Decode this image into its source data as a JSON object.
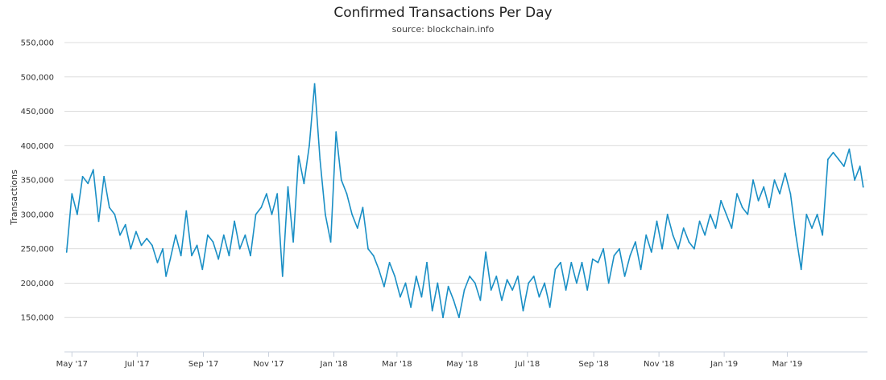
{
  "chart_data": {
    "type": "line",
    "title": "Confirmed Transactions Per Day",
    "subtitle": "source: blockchain.info",
    "ylabel": "Transactions",
    "xlabel": "",
    "ylim": [
      100000,
      550000
    ],
    "xlim": [
      "2017-04-24",
      "2019-05-15"
    ],
    "grid": true,
    "legend": "none",
    "color": "#1a8fc5",
    "y_ticks": [
      {
        "value": 150000,
        "label": "150,000"
      },
      {
        "value": 200000,
        "label": "200,000"
      },
      {
        "value": 250000,
        "label": "250,000"
      },
      {
        "value": 300000,
        "label": "300,000"
      },
      {
        "value": 350000,
        "label": "350,000"
      },
      {
        "value": 400000,
        "label": "400,000"
      },
      {
        "value": 450000,
        "label": "450,000"
      },
      {
        "value": 500000,
        "label": "500,000"
      },
      {
        "value": 550000,
        "label": "550,000"
      }
    ],
    "x_ticks": [
      {
        "date": "2017-05-01",
        "label": "May '17"
      },
      {
        "date": "2017-07-01",
        "label": "Jul '17"
      },
      {
        "date": "2017-09-01",
        "label": "Sep '17"
      },
      {
        "date": "2017-11-01",
        "label": "Nov '17"
      },
      {
        "date": "2018-01-01",
        "label": "Jan '18"
      },
      {
        "date": "2018-03-01",
        "label": "Mar '18"
      },
      {
        "date": "2018-05-01",
        "label": "May '18"
      },
      {
        "date": "2018-07-01",
        "label": "Jul '18"
      },
      {
        "date": "2018-09-01",
        "label": "Sep '18"
      },
      {
        "date": "2018-11-01",
        "label": "Nov '18"
      },
      {
        "date": "2019-01-01",
        "label": "Jan '19"
      },
      {
        "date": "2019-03-01",
        "label": "Mar '19"
      }
    ],
    "series": [
      {
        "x": [
          "2017-04-26",
          "2017-05-01",
          "2017-05-06",
          "2017-05-11",
          "2017-05-16",
          "2017-05-21",
          "2017-05-26",
          "2017-05-31",
          "2017-06-05",
          "2017-06-10",
          "2017-06-15",
          "2017-06-20",
          "2017-06-25",
          "2017-06-30",
          "2017-07-05",
          "2017-07-10",
          "2017-07-15",
          "2017-07-20",
          "2017-07-25",
          "2017-07-28",
          "2017-08-01",
          "2017-08-06",
          "2017-08-11",
          "2017-08-16",
          "2017-08-21",
          "2017-08-26",
          "2017-08-31",
          "2017-09-05",
          "2017-09-10",
          "2017-09-15",
          "2017-09-20",
          "2017-09-25",
          "2017-09-30",
          "2017-10-05",
          "2017-10-10",
          "2017-10-15",
          "2017-10-20",
          "2017-10-25",
          "2017-10-30",
          "2017-11-04",
          "2017-11-09",
          "2017-11-14",
          "2017-11-19",
          "2017-11-24",
          "2017-11-29",
          "2017-12-04",
          "2017-12-09",
          "2017-12-14",
          "2017-12-19",
          "2017-12-24",
          "2017-12-29",
          "2018-01-03",
          "2018-01-08",
          "2018-01-13",
          "2018-01-18",
          "2018-01-23",
          "2018-01-28",
          "2018-02-02",
          "2018-02-07",
          "2018-02-12",
          "2018-02-17",
          "2018-02-22",
          "2018-02-27",
          "2018-03-04",
          "2018-03-09",
          "2018-03-14",
          "2018-03-19",
          "2018-03-24",
          "2018-03-29",
          "2018-04-03",
          "2018-04-08",
          "2018-04-13",
          "2018-04-18",
          "2018-04-23",
          "2018-04-28",
          "2018-05-03",
          "2018-05-08",
          "2018-05-13",
          "2018-05-18",
          "2018-05-23",
          "2018-05-28",
          "2018-06-02",
          "2018-06-07",
          "2018-06-12",
          "2018-06-17",
          "2018-06-22",
          "2018-06-27",
          "2018-07-02",
          "2018-07-07",
          "2018-07-12",
          "2018-07-17",
          "2018-07-22",
          "2018-07-27",
          "2018-08-01",
          "2018-08-06",
          "2018-08-11",
          "2018-08-16",
          "2018-08-21",
          "2018-08-26",
          "2018-08-31",
          "2018-09-05",
          "2018-09-10",
          "2018-09-15",
          "2018-09-20",
          "2018-09-25",
          "2018-09-30",
          "2018-10-05",
          "2018-10-10",
          "2018-10-15",
          "2018-10-20",
          "2018-10-25",
          "2018-10-30",
          "2018-11-04",
          "2018-11-09",
          "2018-11-14",
          "2018-11-19",
          "2018-11-24",
          "2018-11-29",
          "2018-12-04",
          "2018-12-09",
          "2018-12-14",
          "2018-12-19",
          "2018-12-24",
          "2018-12-29",
          "2019-01-03",
          "2019-01-08",
          "2019-01-13",
          "2019-01-18",
          "2019-01-23",
          "2019-01-28",
          "2019-02-02",
          "2019-02-07",
          "2019-02-12",
          "2019-02-17",
          "2019-02-22",
          "2019-02-27",
          "2019-03-04",
          "2019-03-09",
          "2019-03-14",
          "2019-03-19",
          "2019-03-24",
          "2019-03-29",
          "2019-04-03",
          "2019-04-08",
          "2019-04-13",
          "2019-04-18",
          "2019-04-23",
          "2019-04-28",
          "2019-05-03",
          "2019-05-08",
          "2019-05-11"
        ],
        "values": [
          245000,
          330000,
          300000,
          355000,
          345000,
          365000,
          290000,
          355000,
          310000,
          300000,
          270000,
          285000,
          250000,
          275000,
          255000,
          265000,
          255000,
          230000,
          250000,
          210000,
          235000,
          270000,
          240000,
          305000,
          240000,
          255000,
          220000,
          270000,
          260000,
          235000,
          270000,
          240000,
          290000,
          250000,
          270000,
          240000,
          300000,
          310000,
          330000,
          300000,
          330000,
          210000,
          340000,
          260000,
          385000,
          345000,
          400000,
          490000,
          380000,
          300000,
          260000,
          420000,
          350000,
          330000,
          300000,
          280000,
          310000,
          250000,
          240000,
          220000,
          195000,
          230000,
          210000,
          180000,
          200000,
          165000,
          210000,
          180000,
          230000,
          160000,
          200000,
          150000,
          195000,
          175000,
          150000,
          190000,
          210000,
          200000,
          175000,
          245000,
          190000,
          210000,
          175000,
          205000,
          190000,
          210000,
          160000,
          200000,
          210000,
          180000,
          200000,
          165000,
          220000,
          230000,
          190000,
          230000,
          200000,
          230000,
          190000,
          235000,
          230000,
          250000,
          200000,
          240000,
          250000,
          210000,
          240000,
          260000,
          220000,
          270000,
          245000,
          290000,
          250000,
          300000,
          270000,
          250000,
          280000,
          260000,
          250000,
          290000,
          270000,
          300000,
          280000,
          320000,
          300000,
          280000,
          330000,
          310000,
          300000,
          350000,
          320000,
          340000,
          310000,
          350000,
          330000,
          360000,
          330000,
          270000,
          220000,
          300000,
          280000,
          300000,
          270000,
          380000,
          390000,
          380000,
          370000,
          395000,
          350000,
          370000,
          340000
        ]
      }
    ]
  }
}
